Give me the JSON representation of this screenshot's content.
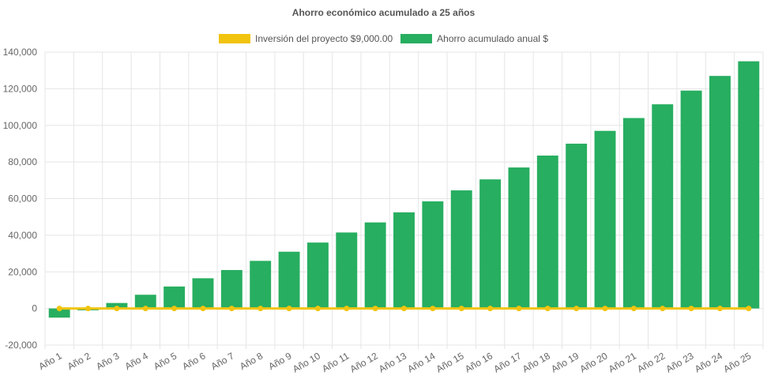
{
  "chart_data": {
    "type": "bar",
    "title": "Ahorro económico acumulado a 25 años",
    "xlabel": "",
    "ylabel": "",
    "categories": [
      "Año 1",
      "Año 2",
      "Año 3",
      "Año 4",
      "Año 5",
      "Año 6",
      "Año 7",
      "Año 8",
      "Año 9",
      "Año 10",
      "Año 11",
      "Año 12",
      "Año 13",
      "Año 14",
      "Año 15",
      "Año 16",
      "Año 17",
      "Año 18",
      "Año 19",
      "Año 20",
      "Año 21",
      "Año 22",
      "Año 23",
      "Año 24",
      "Año 25"
    ],
    "ylim": [
      -20000,
      140000
    ],
    "yticks": [
      "140,000",
      "120,000",
      "100,000",
      "80,000",
      "60,000",
      "40,000",
      "20,000",
      "0",
      "-20,000"
    ],
    "ytick_values": [
      140000,
      120000,
      100000,
      80000,
      60000,
      40000,
      20000,
      0,
      -20000
    ],
    "grid": true,
    "legend_position": "top",
    "series": [
      {
        "name": "Inversión del proyecto $9,000.00",
        "kind": "line",
        "color": "#f1c40f",
        "values": [
          0,
          0,
          0,
          0,
          0,
          0,
          0,
          0,
          0,
          0,
          0,
          0,
          0,
          0,
          0,
          0,
          0,
          0,
          0,
          0,
          0,
          0,
          0,
          0,
          0
        ]
      },
      {
        "name": "Ahorro acumulado anual $",
        "kind": "bar",
        "color": "#27ae60",
        "values": [
          -5000,
          -1000,
          3000,
          7500,
          12000,
          16500,
          21000,
          26000,
          31000,
          36000,
          41500,
          47000,
          52500,
          58500,
          64500,
          70500,
          77000,
          83500,
          90000,
          97000,
          104000,
          111500,
          119000,
          127000,
          135000
        ]
      }
    ]
  }
}
